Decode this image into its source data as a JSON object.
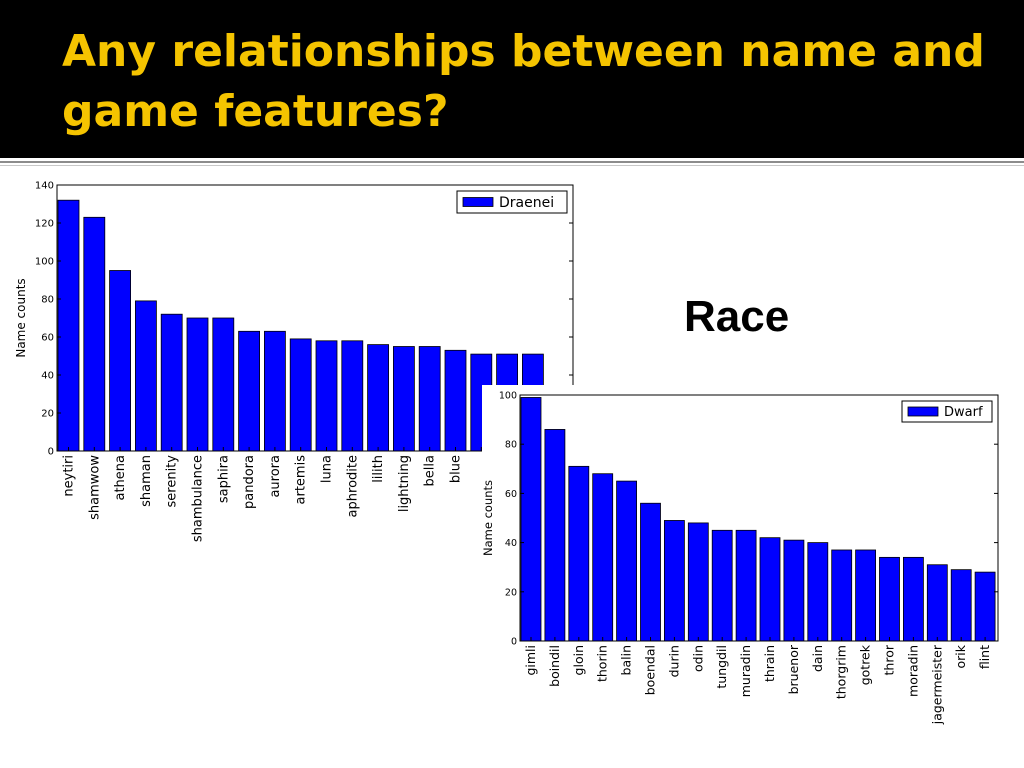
{
  "slide": {
    "title": "Any relationships between name and game features?",
    "side_label": "Race"
  },
  "colors": {
    "header_bg": "#000000",
    "title": "#f5c400",
    "bar": "#0000ff"
  },
  "chart_data": [
    {
      "type": "bar",
      "title": "",
      "xlabel": "",
      "ylabel": "Name counts",
      "ylim": [
        0,
        140
      ],
      "yticks": [
        0,
        20,
        40,
        60,
        80,
        100,
        120,
        140
      ],
      "legend_position": "top-right",
      "grid": false,
      "categories": [
        "neytiri",
        "shamwow",
        "athena",
        "shaman",
        "serenity",
        "shambulance",
        "saphira",
        "pandora",
        "aurora",
        "artemis",
        "luna",
        "aphrodite",
        "lilith",
        "lightning",
        "bella",
        "blue",
        "",
        "",
        ""
      ],
      "series": [
        {
          "name": "Draenei",
          "color": "#0000ff",
          "values": [
            132,
            123,
            95,
            79,
            72,
            70,
            70,
            63,
            63,
            59,
            58,
            58,
            56,
            55,
            55,
            53,
            51,
            51,
            51
          ]
        }
      ]
    },
    {
      "type": "bar",
      "title": "",
      "xlabel": "",
      "ylabel": "Name counts",
      "ylim": [
        0,
        100
      ],
      "yticks": [
        0,
        20,
        40,
        60,
        80,
        100
      ],
      "legend_position": "top-right",
      "grid": false,
      "categories": [
        "gimli",
        "boindil",
        "gloin",
        "thorin",
        "balin",
        "boendal",
        "durin",
        "odin",
        "tungdil",
        "muradin",
        "thrain",
        "bruenor",
        "dain",
        "thorgrim",
        "gotrek",
        "thror",
        "moradin",
        "jagermeister",
        "orik",
        "flint"
      ],
      "series": [
        {
          "name": "Dwarf",
          "color": "#0000ff",
          "values": [
            99,
            86,
            71,
            68,
            65,
            56,
            49,
            48,
            45,
            45,
            42,
            41,
            40,
            37,
            37,
            34,
            34,
            31,
            29,
            28
          ]
        }
      ]
    }
  ]
}
